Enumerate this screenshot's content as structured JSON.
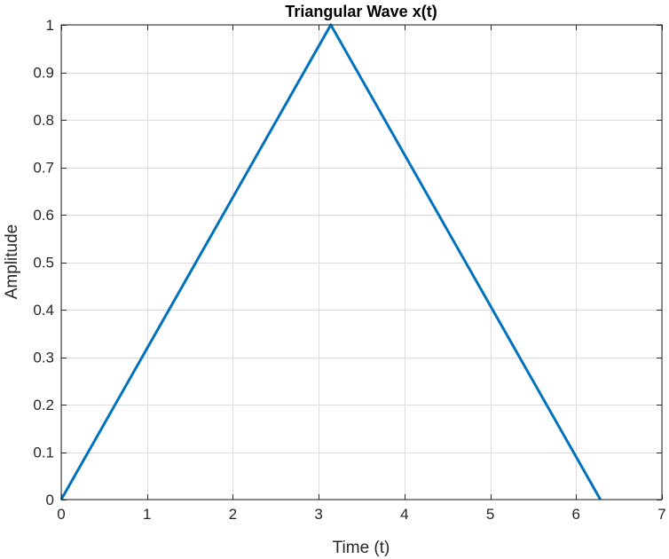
{
  "chart_data": {
    "type": "line",
    "title": "Triangular Wave x(t)",
    "xlabel": "Time (t)",
    "ylabel": "Amplitude",
    "xlim": [
      0,
      7
    ],
    "ylim": [
      0,
      1
    ],
    "xticks": [
      0,
      1,
      2,
      3,
      4,
      5,
      6,
      7
    ],
    "yticks": [
      0,
      0.1,
      0.2,
      0.3,
      0.4,
      0.5,
      0.6,
      0.7,
      0.8,
      0.9,
      1
    ],
    "xtick_labels": [
      "0",
      "1",
      "2",
      "3",
      "4",
      "5",
      "6",
      "7"
    ],
    "ytick_labels": [
      "0",
      "0.1",
      "0.2",
      "0.3",
      "0.4",
      "0.5",
      "0.6",
      "0.7",
      "0.8",
      "0.9",
      "1"
    ],
    "grid": true,
    "series": [
      {
        "color": "#0072BD",
        "x": [
          0,
          3.1416,
          6.2832
        ],
        "y": [
          0,
          1,
          0
        ]
      }
    ]
  }
}
